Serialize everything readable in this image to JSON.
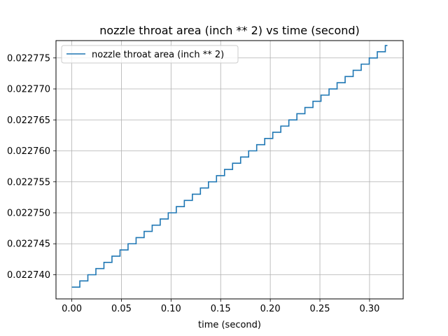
{
  "chart_data": {
    "type": "line",
    "title": "nozzle throat area (inch ** 2) vs time (second)",
    "xlabel": "time (second)",
    "ylabel": "",
    "xlim": [
      -0.0159,
      0.3339
    ],
    "ylim": [
      0.0227361,
      0.0227778
    ],
    "xticks": [
      0.0,
      0.05,
      0.1,
      0.15,
      0.2,
      0.25,
      0.3
    ],
    "xtick_labels": [
      "0.00",
      "0.05",
      "0.10",
      "0.15",
      "0.20",
      "0.25",
      "0.30"
    ],
    "yticks": [
      0.02274,
      0.022745,
      0.02275,
      0.022755,
      0.02276,
      0.022765,
      0.02277,
      0.022775
    ],
    "ytick_labels": [
      "0.022740",
      "0.022745",
      "0.022750",
      "0.022755",
      "0.022760",
      "0.022765",
      "0.022770",
      "0.022775"
    ],
    "grid": true,
    "legend_position": "top-left",
    "series": [
      {
        "name": "nozzle throat area (inch ** 2)",
        "color": "#1f77b4",
        "step": true,
        "step_start": 0.0,
        "step_width": 0.0081,
        "step_count": 40,
        "x_end": 0.318,
        "y_start": 0.022738,
        "y_increment": 1e-06
      }
    ]
  }
}
